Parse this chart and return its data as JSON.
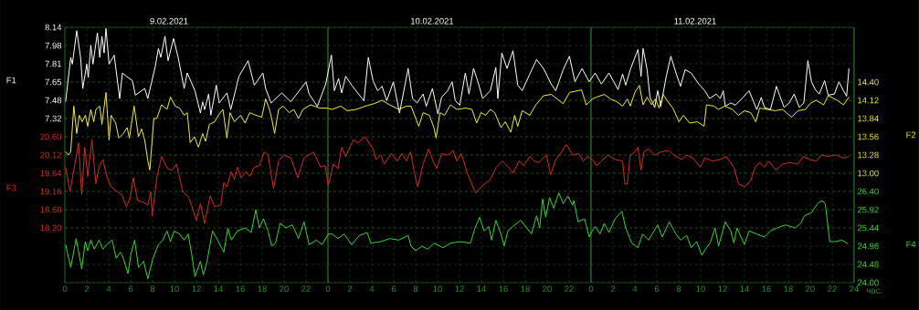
{
  "chart_data": [
    {
      "type": "line",
      "xlabel": "час.",
      "ylabel": "F1",
      "y2label": "F2",
      "y3label": "F3",
      "xlim": [
        "2021-02-09T00:00",
        "2021-02-12T00:00"
      ],
      "xticks": [
        {
          "value": "2021-02-09T00:00",
          "label": "0"
        },
        {
          "value": "2021-02-09T02:00",
          "label": "2"
        },
        {
          "value": "2021-02-09T04:00",
          "label": "4"
        },
        {
          "value": "2021-02-09T06:00",
          "label": "6"
        },
        {
          "value": "2021-02-09T08:00",
          "label": "8"
        },
        {
          "value": "2021-02-09T10:00",
          "label": "10"
        },
        {
          "value": "2021-02-09T12:00",
          "label": "12"
        },
        {
          "value": "2021-02-09T14:00",
          "label": "14"
        },
        {
          "value": "2021-02-09T16:00",
          "label": "16"
        },
        {
          "value": "2021-02-09T18:00",
          "label": "18"
        },
        {
          "value": "2021-02-09T20:00",
          "label": "20"
        },
        {
          "value": "2021-02-09T22:00",
          "label": "22"
        },
        {
          "value": "2021-02-10T00:00",
          "label": "0"
        },
        {
          "value": "2021-02-10T02:00",
          "label": "2"
        },
        {
          "value": "2021-02-10T04:00",
          "label": "4"
        },
        {
          "value": "2021-02-10T06:00",
          "label": "6"
        },
        {
          "value": "2021-02-10T08:00",
          "label": "8"
        },
        {
          "value": "2021-02-10T10:00",
          "label": "10"
        },
        {
          "value": "2021-02-10T12:00",
          "label": "12"
        },
        {
          "value": "2021-02-10T14:00",
          "label": "14"
        },
        {
          "value": "2021-02-10T16:00",
          "label": "16"
        },
        {
          "value": "2021-02-10T18:00",
          "label": "18"
        },
        {
          "value": "2021-02-10T20:00",
          "label": "20"
        },
        {
          "value": "2021-02-10T22:00",
          "label": "22"
        },
        {
          "value": "2021-02-11T00:00",
          "label": "0"
        },
        {
          "value": "2021-02-11T02:00",
          "label": "2"
        },
        {
          "value": "2021-02-11T04:00",
          "label": "4"
        },
        {
          "value": "2021-02-11T06:00",
          "label": "6"
        },
        {
          "value": "2021-02-11T08:00",
          "label": "8"
        },
        {
          "value": "2021-02-11T10:00",
          "label": "10"
        },
        {
          "value": "2021-02-11T12:00",
          "label": "12"
        },
        {
          "value": "2021-02-11T14:00",
          "label": "14"
        },
        {
          "value": "2021-02-11T16:00",
          "label": "16"
        },
        {
          "value": "2021-02-11T18:00",
          "label": "18"
        },
        {
          "value": "2021-02-11T20:00",
          "label": "20"
        },
        {
          "value": "2021-02-11T22:00",
          "label": "22"
        },
        {
          "value": "2021-02-12T00:00",
          "label": "24"
        }
      ],
      "x2lim": [
        "2021-02-09T00:00",
        "2021-02-12T00:00"
      ],
      "x2ticks": [
        {
          "value": "2021-02-09T09:30",
          "label": "9.02.2021"
        },
        {
          "value": "2021-02-10T09:30",
          "label": "10.02.2021"
        },
        {
          "value": "2021-02-11T09:30",
          "label": "11.02.2021"
        }
      ],
      "ylim": [
        5.844,
        8.14
      ],
      "yticks": [
        {
          "value": 8.14,
          "label": "8.14"
        },
        {
          "value": 7.976,
          "label": "7.98"
        },
        {
          "value": 7.812,
          "label": "7.81"
        },
        {
          "value": 7.648,
          "label": "7.65"
        },
        {
          "value": 7.484,
          "label": "7.48"
        },
        {
          "value": 7.32,
          "label": "7.32"
        }
      ],
      "y2lim": [
        11.32,
        15.24
      ],
      "y2ticks": [
        {
          "value": 14.4,
          "label": "14.40"
        },
        {
          "value": 14.12,
          "label": "14.12"
        },
        {
          "value": 13.84,
          "label": "13.84"
        },
        {
          "value": 13.56,
          "label": "13.56"
        },
        {
          "value": 13.28,
          "label": "13.28"
        },
        {
          "value": 13.0,
          "label": "13.00"
        }
      ],
      "y3lim": [
        16.76,
        23.48
      ],
      "y3ticks": [
        {
          "value": 20.6,
          "label": "20.60"
        },
        {
          "value": 20.12,
          "label": "20.12"
        },
        {
          "value": 19.64,
          "label": "19.64"
        },
        {
          "value": 19.16,
          "label": "19.16"
        },
        {
          "value": 18.68,
          "label": "18.68"
        },
        {
          "value": 18.2,
          "label": "18.20"
        }
      ],
      "grid": true,
      "series": [
        {
          "axis": "y2",
          "color": "#f0f020",
          "x": [
            "2021-02-09T00:04",
            "2021-02-09T00:20",
            "2021-02-09T00:32",
            "2021-02-09T00:49",
            "2021-02-09T01:05",
            "2021-02-09T01:19",
            "2021-02-09T01:35",
            "2021-02-09T01:52",
            "2021-02-09T02:05",
            "2021-02-09T02:22",
            "2021-02-09T02:38",
            "2021-02-09T02:50",
            "2021-02-09T03:11",
            "2021-02-09T03:23",
            "2021-02-09T03:45",
            "2021-02-09T04:02",
            "2021-02-09T04:13",
            "2021-02-09T04:38",
            "2021-02-09T04:55",
            "2021-02-09T05:20",
            "2021-02-09T05:41",
            "2021-02-09T05:53",
            "2021-02-09T06:19",
            "2021-02-09T06:43",
            "2021-02-09T07:00",
            "2021-02-09T07:17",
            "2021-02-09T07:34",
            "2021-02-09T07:45",
            "2021-02-09T08:07",
            "2021-02-09T08:23",
            "2021-02-09T08:49",
            "2021-02-09T09:19",
            "2021-02-09T09:38",
            "2021-02-09T10:04",
            "2021-02-09T10:28",
            "2021-02-09T10:53",
            "2021-02-09T11:10",
            "2021-02-09T11:26",
            "2021-02-09T11:49",
            "2021-02-09T12:11",
            "2021-02-09T12:34",
            "2021-02-09T12:50",
            "2021-02-09T13:11",
            "2021-02-09T13:40",
            "2021-02-09T14:05",
            "2021-02-09T14:25",
            "2021-02-09T14:47",
            "2021-02-09T15:04",
            "2021-02-09T15:28",
            "2021-02-09T16:02",
            "2021-02-09T16:26",
            "2021-02-09T16:52",
            "2021-02-09T17:25",
            "2021-02-09T17:58",
            "2021-02-09T18:19",
            "2021-02-09T18:40",
            "2021-02-09T18:52",
            "2021-02-09T19:08",
            "2021-02-09T19:30",
            "2021-02-09T19:55",
            "2021-02-09T20:28",
            "2021-02-09T20:53",
            "2021-02-09T21:19",
            "2021-02-09T21:43",
            "2021-02-09T22:25",
            "2021-02-09T23:15",
            "2021-02-09T23:56",
            "2021-02-10T00:22",
            "2021-02-10T01:11",
            "2021-02-10T01:45",
            "2021-02-10T02:35",
            "2021-02-10T03:25",
            "2021-02-10T04:15",
            "2021-02-10T04:56",
            "2021-02-10T05:38",
            "2021-02-10T06:28",
            "2021-02-10T07:10",
            "2021-02-10T07:35",
            "2021-02-10T08:17",
            "2021-02-10T08:41",
            "2021-02-10T09:15",
            "2021-02-10T09:40",
            "2021-02-10T09:52",
            "2021-02-10T10:13",
            "2021-02-10T10:38",
            "2021-02-10T11:11",
            "2021-02-10T11:45",
            "2021-02-10T12:35",
            "2021-02-10T13:08",
            "2021-02-10T13:34",
            "2021-02-10T13:58",
            "2021-02-10T14:23",
            "2021-02-10T14:49",
            "2021-02-10T15:13",
            "2021-02-10T15:47",
            "2021-02-10T16:11",
            "2021-02-10T16:41",
            "2021-02-10T17:02",
            "2021-02-10T17:19",
            "2021-02-10T17:43",
            "2021-02-10T18:25",
            "2021-02-10T18:58",
            "2021-02-10T19:40",
            "2021-02-10T20:22",
            "2021-02-10T21:28",
            "2021-02-10T22:02",
            "2021-02-10T22:35",
            "2021-02-10T23:08",
            "2021-02-10T23:34",
            "2021-02-11T00:07",
            "2021-02-11T00:32",
            "2021-02-11T01:13",
            "2021-02-11T01:47",
            "2021-02-11T02:20",
            "2021-02-11T02:53",
            "2021-02-11T03:19",
            "2021-02-11T03:35",
            "2021-02-11T04:00",
            "2021-02-11T04:25",
            "2021-02-11T04:45",
            "2021-02-11T05:07",
            "2021-02-11T05:32",
            "2021-02-11T05:52",
            "2021-02-11T06:13",
            "2021-02-11T06:35",
            "2021-02-11T06:55",
            "2021-02-11T07:28",
            "2021-02-11T08:02",
            "2021-02-11T08:26",
            "2021-02-11T09:00",
            "2021-02-11T09:42",
            "2021-02-11T10:19",
            "2021-02-11T10:32",
            "2021-02-11T11:13",
            "2021-02-11T11:38",
            "2021-02-11T12:12",
            "2021-02-11T12:53",
            "2021-02-11T13:27",
            "2021-02-11T14:00",
            "2021-02-11T14:34",
            "2021-02-11T15:02",
            "2021-02-11T15:23",
            "2021-02-11T16:05",
            "2021-02-11T16:47",
            "2021-02-11T17:28",
            "2021-02-11T18:19",
            "2021-02-11T18:52",
            "2021-02-11T19:34",
            "2021-02-11T19:59",
            "2021-02-11T20:32",
            "2021-02-11T21:13",
            "2021-02-11T21:38",
            "2021-02-11T22:28",
            "2021-02-11T23:02",
            "2021-02-11T23:32"
          ],
          "values": [
            13.33,
            13.28,
            13.33,
            14.03,
            13.61,
            13.89,
            13.79,
            13.89,
            13.72,
            13.98,
            13.79,
            13.98,
            14.03,
            13.75,
            14.24,
            13.51,
            13.89,
            13.77,
            13.54,
            13.61,
            13.7,
            13.54,
            14.03,
            13.56,
            13.68,
            13.51,
            13.19,
            13.05,
            13.84,
            13.84,
            14.05,
            13.98,
            14.17,
            14.03,
            14.0,
            13.89,
            13.93,
            13.47,
            13.56,
            13.4,
            13.61,
            13.49,
            13.75,
            13.79,
            13.91,
            13.98,
            13.54,
            13.93,
            13.79,
            13.89,
            13.77,
            13.93,
            13.89,
            13.86,
            14.14,
            13.98,
            13.84,
            13.61,
            13.98,
            14.03,
            13.93,
            13.98,
            13.84,
            13.98,
            14.05,
            14.0,
            14.0,
            13.98,
            14.03,
            13.96,
            13.98,
            14.03,
            14.07,
            14.12,
            14.05,
            13.98,
            14.03,
            14.03,
            13.72,
            13.93,
            13.89,
            13.7,
            13.54,
            13.93,
            13.89,
            14.05,
            13.98,
            14.0,
            13.98,
            13.77,
            13.93,
            13.89,
            13.98,
            13.93,
            13.7,
            13.79,
            13.63,
            13.89,
            13.72,
            13.96,
            13.89,
            14.05,
            14.19,
            14.21,
            14.07,
            14.24,
            14.26,
            14.28,
            14.05,
            14.14,
            14.17,
            14.21,
            14.14,
            14.1,
            14.03,
            14.14,
            14.03,
            14.24,
            14.35,
            14.05,
            14.17,
            14.05,
            14.14,
            14.0,
            14.21,
            14.12,
            14.0,
            13.79,
            13.89,
            13.77,
            13.79,
            13.72,
            14.05,
            14.03,
            13.98,
            14.03,
            13.98,
            13.89,
            13.96,
            13.93,
            13.79,
            14.0,
            13.98,
            13.96,
            13.98,
            13.86,
            13.96,
            13.98,
            14.07,
            14.12,
            14.05,
            14.19,
            14.12,
            14.05,
            14.17
          ]
        },
        {
          "axis": "y3",
          "color": "#d42a1e",
          "x": [
            "2021-02-09T00:04",
            "2021-02-09T00:28",
            "2021-02-09T00:49",
            "2021-02-09T01:15",
            "2021-02-09T01:32",
            "2021-02-09T01:49",
            "2021-02-09T02:05",
            "2021-02-09T02:28",
            "2021-02-09T02:50",
            "2021-02-09T03:07",
            "2021-02-09T03:28",
            "2021-02-09T03:49",
            "2021-02-09T04:13",
            "2021-02-09T04:47",
            "2021-02-09T05:11",
            "2021-02-09T05:37",
            "2021-02-09T05:58",
            "2021-02-09T06:15",
            "2021-02-09T06:38",
            "2021-02-09T07:08",
            "2021-02-09T07:34",
            "2021-02-09T07:50",
            "2021-02-09T07:58",
            "2021-02-09T08:23",
            "2021-02-09T08:49",
            "2021-02-09T09:22",
            "2021-02-09T09:47",
            "2021-02-09T10:11",
            "2021-02-09T10:45",
            "2021-02-09T11:19",
            "2021-02-09T12:00",
            "2021-02-09T12:22",
            "2021-02-09T12:45",
            "2021-02-09T13:15",
            "2021-02-09T13:40",
            "2021-02-09T14:13",
            "2021-02-09T14:30",
            "2021-02-09T14:47",
            "2021-02-09T15:11",
            "2021-02-09T15:28",
            "2021-02-09T15:45",
            "2021-02-09T16:05",
            "2021-02-09T16:32",
            "2021-02-09T16:52",
            "2021-02-09T17:17",
            "2021-02-09T17:45",
            "2021-02-09T18:11",
            "2021-02-09T18:32",
            "2021-02-09T19:02",
            "2021-02-09T19:30",
            "2021-02-09T19:58",
            "2021-02-09T20:37",
            "2021-02-09T21:15",
            "2021-02-09T21:49",
            "2021-02-09T22:41",
            "2021-02-09T23:19",
            "2021-02-09T23:45",
            "2021-02-10T00:02",
            "2021-02-10T00:30",
            "2021-02-10T00:55",
            "2021-02-10T01:15",
            "2021-02-10T01:37",
            "2021-02-10T02:19",
            "2021-02-10T02:43",
            "2021-02-10T03:22",
            "2021-02-10T04:07",
            "2021-02-10T04:23",
            "2021-02-10T04:49",
            "2021-02-10T05:08",
            "2021-02-10T05:47",
            "2021-02-10T06:20",
            "2021-02-10T06:45",
            "2021-02-10T07:10",
            "2021-02-10T07:32",
            "2021-02-10T07:52",
            "2021-02-10T08:11",
            "2021-02-10T08:41",
            "2021-02-10T09:11",
            "2021-02-10T09:35",
            "2021-02-10T09:56",
            "2021-02-10T10:22",
            "2021-02-10T10:55",
            "2021-02-10T11:25",
            "2021-02-10T11:45",
            "2021-02-10T12:10",
            "2021-02-10T12:43",
            "2021-02-10T13:28",
            "2021-02-10T13:58",
            "2021-02-10T14:49",
            "2021-02-10T15:22",
            "2021-02-10T15:55",
            "2021-02-10T16:28",
            "2021-02-10T16:53",
            "2021-02-10T17:26",
            "2021-02-10T17:52",
            "2021-02-10T18:25",
            "2021-02-10T18:50",
            "2021-02-10T19:15",
            "2021-02-10T19:56",
            "2021-02-10T20:19",
            "2021-02-10T20:47",
            "2021-02-10T21:20",
            "2021-02-10T21:45",
            "2021-02-10T22:19",
            "2021-02-10T22:52",
            "2021-02-10T23:17",
            "2021-02-10T23:41",
            "2021-02-11T00:07",
            "2021-02-11T00:32",
            "2021-02-11T00:57",
            "2021-02-11T01:30",
            "2021-02-11T02:12",
            "2021-02-11T02:53",
            "2021-02-11T03:05",
            "2021-02-11T03:19",
            "2021-02-11T03:35",
            "2021-02-11T04:00",
            "2021-02-11T04:17",
            "2021-02-11T04:34",
            "2021-02-11T04:50",
            "2021-02-11T05:15",
            "2021-02-11T05:49",
            "2021-02-11T06:22",
            "2021-02-11T07:04",
            "2021-02-11T07:45",
            "2021-02-11T08:19",
            "2021-02-11T08:44",
            "2021-02-11T09:17",
            "2021-02-11T09:58",
            "2021-02-11T10:23",
            "2021-02-11T11:05",
            "2021-02-11T11:47",
            "2021-02-11T12:20",
            "2021-02-11T13:02",
            "2021-02-11T13:27",
            "2021-02-11T14:00",
            "2021-02-11T14:34",
            "2021-02-11T14:58",
            "2021-02-11T15:23",
            "2021-02-11T15:49",
            "2021-02-11T16:13",
            "2021-02-11T16:52",
            "2021-02-11T17:28",
            "2021-02-11T18:10",
            "2021-02-11T18:52",
            "2021-02-11T19:22",
            "2021-02-11T19:59",
            "2021-02-11T20:32",
            "2021-02-11T21:02",
            "2021-02-11T21:38",
            "2021-02-11T22:20",
            "2021-02-11T23:02",
            "2021-02-11T23:32"
          ],
          "values": [
            19.8,
            19.16,
            19.72,
            20.44,
            19.08,
            20.32,
            19.56,
            20.52,
            19.36,
            19.8,
            20.0,
            19.56,
            19.28,
            19.16,
            19.08,
            18.76,
            19.0,
            19.52,
            18.92,
            18.88,
            18.8,
            19.16,
            18.52,
            19.52,
            20.08,
            19.76,
            19.72,
            19.88,
            19.16,
            19.0,
            18.4,
            18.84,
            18.32,
            19.04,
            18.76,
            18.8,
            19.4,
            19.28,
            19.68,
            19.48,
            19.8,
            19.52,
            19.68,
            19.56,
            19.8,
            19.84,
            20.2,
            20.12,
            19.24,
            19.96,
            20.12,
            20.04,
            19.52,
            20.04,
            20.2,
            19.8,
            19.84,
            19.32,
            19.88,
            19.76,
            20.32,
            20.08,
            20.52,
            20.44,
            20.6,
            20.28,
            20.0,
            20.12,
            19.88,
            20.16,
            19.96,
            20.16,
            19.96,
            20.2,
            19.68,
            19.28,
            19.88,
            20.28,
            19.96,
            19.76,
            20.16,
            20.12,
            20.24,
            19.96,
            20.16,
            19.64,
            19.12,
            19.28,
            19.48,
            19.8,
            19.96,
            19.8,
            19.64,
            19.96,
            19.84,
            20.08,
            19.96,
            19.92,
            20.12,
            19.6,
            20.0,
            20.2,
            20.4,
            20.12,
            20.16,
            19.96,
            20.08,
            20.0,
            19.84,
            19.96,
            20.12,
            20.0,
            19.96,
            19.36,
            19.36,
            20.12,
            20.2,
            20.32,
            19.72,
            20.2,
            20.28,
            20.12,
            20.2,
            20.24,
            20.08,
            20.0,
            20.12,
            20.04,
            19.8,
            20.04,
            19.96,
            20.0,
            20.08,
            19.8,
            19.36,
            19.28,
            19.44,
            19.8,
            19.92,
            19.8,
            19.96,
            19.72,
            19.88,
            19.92,
            19.88,
            20.08,
            20.0,
            19.96,
            20.12,
            20.08,
            20.12,
            20.04,
            20.08
          ]
        },
        {
          "color": "#ffffff",
          "x": [
            "2021-02-09T00:04",
            "2021-02-09T00:32",
            "2021-02-09T00:41",
            "2021-02-09T01:05",
            "2021-02-09T01:26",
            "2021-02-09T01:38",
            "2021-02-09T02:00",
            "2021-02-09T02:08",
            "2021-02-09T02:22",
            "2021-02-09T02:34",
            "2021-02-09T02:58",
            "2021-02-09T03:11",
            "2021-02-09T03:23",
            "2021-02-09T03:35",
            "2021-02-09T03:45",
            "2021-02-09T04:02",
            "2021-02-09T04:30",
            "2021-02-09T05:00",
            "2021-02-09T05:15",
            "2021-02-09T05:37",
            "2021-02-09T06:10",
            "2021-02-09T06:26",
            "2021-02-09T07:17",
            "2021-02-09T07:34",
            "2021-02-09T08:15",
            "2021-02-09T08:32",
            "2021-02-09T08:45",
            "2021-02-09T09:08",
            "2021-02-09T09:25",
            "2021-02-09T09:55",
            "2021-02-09T10:20",
            "2021-02-09T10:53",
            "2021-02-09T11:10",
            "2021-02-09T11:52",
            "2021-02-09T12:22",
            "2021-02-09T12:34",
            "2021-02-09T12:45",
            "2021-02-09T13:07",
            "2021-02-09T13:19",
            "2021-02-09T13:49",
            "2021-02-09T14:05",
            "2021-02-09T14:47",
            "2021-02-09T15:08",
            "2021-02-09T15:53",
            "2021-02-09T16:43",
            "2021-02-09T17:17",
            "2021-02-09T18:04",
            "2021-02-09T18:19",
            "2021-02-09T18:49",
            "2021-02-09T19:47",
            "2021-02-09T20:37",
            "2021-02-09T22:00",
            "2021-02-09T22:17",
            "2021-02-09T23:02",
            "2021-02-09T23:48",
            "2021-02-10T00:19",
            "2021-02-10T00:35",
            "2021-02-10T00:58",
            "2021-02-10T01:15",
            "2021-02-10T01:37",
            "2021-02-10T02:10",
            "2021-02-10T02:43",
            "2021-02-10T03:17",
            "2021-02-10T03:41",
            "2021-02-10T04:07",
            "2021-02-10T04:32",
            "2021-02-10T04:56",
            "2021-02-10T05:22",
            "2021-02-10T05:58",
            "2021-02-10T06:32",
            "2021-02-10T07:19",
            "2021-02-10T07:43",
            "2021-02-10T08:08",
            "2021-02-10T08:41",
            "2021-02-10T08:58",
            "2021-02-10T09:32",
            "2021-02-10T10:02",
            "2021-02-10T10:22",
            "2021-02-10T10:55",
            "2021-02-10T11:20",
            "2021-02-10T11:37",
            "2021-02-10T12:02",
            "2021-02-10T12:32",
            "2021-02-10T12:52",
            "2021-02-10T13:17",
            "2021-02-10T13:41",
            "2021-02-10T14:07",
            "2021-02-10T14:49",
            "2021-02-10T15:19",
            "2021-02-10T15:30",
            "2021-02-10T15:52",
            "2021-02-10T16:20",
            "2021-02-10T16:53",
            "2021-02-10T17:19",
            "2021-02-10T17:43",
            "2021-02-10T18:25",
            "2021-02-10T19:02",
            "2021-02-10T19:40",
            "2021-02-10T20:22",
            "2021-02-10T20:47",
            "2021-02-10T21:28",
            "2021-02-10T22:02",
            "2021-02-10T22:32",
            "2021-02-10T23:11",
            "2021-02-10T23:50",
            "2021-02-11T00:23",
            "2021-02-11T00:57",
            "2021-02-11T01:38",
            "2021-02-11T02:28",
            "2021-02-11T02:53",
            "2021-02-11T03:10",
            "2021-02-11T03:35",
            "2021-02-11T04:17",
            "2021-02-11T04:34",
            "2021-02-11T04:45",
            "2021-02-11T05:07",
            "2021-02-11T05:23",
            "2021-02-11T05:49",
            "2021-02-11T06:05",
            "2021-02-11T06:22",
            "2021-02-11T06:52",
            "2021-02-11T07:17",
            "2021-02-11T07:45",
            "2021-02-11T08:10",
            "2021-02-11T08:35",
            "2021-02-11T09:08",
            "2021-02-11T09:50",
            "2021-02-11T10:23",
            "2021-02-11T10:49",
            "2021-02-11T11:25",
            "2021-02-11T11:47",
            "2021-02-11T12:04",
            "2021-02-11T12:15",
            "2021-02-11T12:45",
            "2021-02-11T13:10",
            "2021-02-11T13:52",
            "2021-02-11T14:25",
            "2021-02-11T14:50",
            "2021-02-11T15:07",
            "2021-02-11T15:32",
            "2021-02-11T15:49",
            "2021-02-11T16:22",
            "2021-02-11T16:55",
            "2021-02-11T17:12",
            "2021-02-11T17:37",
            "2021-02-11T18:05",
            "2021-02-11T18:32",
            "2021-02-11T19:00",
            "2021-02-11T19:25",
            "2021-02-11T19:47",
            "2021-02-11T20:07",
            "2021-02-11T20:28",
            "2021-02-11T20:49",
            "2021-02-11T21:19",
            "2021-02-11T21:38",
            "2021-02-11T22:12",
            "2021-02-11T22:37",
            "2021-02-11T23:02",
            "2021-02-11T23:19",
            "2021-02-11T23:32"
          ],
          "values": [
            7.47,
            7.87,
            7.81,
            8.11,
            7.87,
            7.59,
            7.81,
            7.69,
            7.98,
            7.81,
            8.09,
            7.87,
            8.06,
            7.91,
            8.13,
            7.81,
            7.89,
            7.5,
            7.73,
            7.7,
            7.66,
            7.53,
            7.59,
            7.5,
            7.79,
            7.95,
            7.87,
            8.06,
            7.84,
            8.04,
            7.87,
            7.59,
            7.73,
            7.57,
            7.37,
            7.47,
            7.4,
            7.54,
            7.35,
            7.62,
            7.46,
            7.55,
            7.4,
            7.7,
            7.84,
            7.62,
            7.73,
            7.59,
            7.46,
            7.55,
            7.47,
            7.65,
            7.54,
            7.43,
            7.63,
            7.89,
            7.57,
            7.68,
            7.55,
            7.7,
            7.62,
            7.55,
            7.48,
            7.87,
            7.66,
            7.57,
            7.61,
            7.48,
            7.65,
            7.37,
            7.77,
            7.5,
            7.46,
            7.54,
            7.43,
            7.59,
            7.36,
            7.51,
            7.57,
            7.65,
            7.48,
            7.44,
            7.73,
            7.54,
            7.77,
            7.65,
            7.5,
            7.57,
            7.78,
            7.5,
            7.91,
            7.77,
            7.93,
            7.62,
            7.57,
            7.72,
            7.85,
            7.77,
            7.63,
            7.57,
            7.76,
            7.88,
            7.65,
            7.77,
            7.65,
            7.73,
            7.63,
            7.73,
            7.58,
            7.72,
            7.62,
            7.76,
            7.94,
            7.7,
            7.95,
            7.76,
            7.51,
            7.42,
            7.57,
            7.43,
            7.7,
            7.88,
            7.73,
            7.61,
            7.76,
            7.73,
            7.63,
            7.57,
            7.5,
            7.54,
            7.5,
            7.57,
            7.43,
            7.46,
            7.44,
            7.51,
            7.57,
            7.47,
            7.4,
            7.51,
            7.42,
            7.4,
            7.61,
            7.53,
            7.42,
            7.46,
            7.54,
            7.42,
            7.46,
            7.84,
            7.65,
            7.58,
            7.54,
            7.66,
            7.53,
            7.54,
            7.65,
            7.57,
            7.52,
            7.77
          ]
        }
      ]
    },
    {
      "type": "line",
      "ylabel": "F4",
      "tick_labels": "y",
      "grid": "y",
      "xlim": [
        "2021-02-09T00:00",
        "2021-02-12T00:00"
      ],
      "ylim": [
        24.0,
        30.72
      ],
      "yticks": [
        {
          "value": 26.4,
          "label": "26.40"
        },
        {
          "value": 25.92,
          "label": "25.92"
        },
        {
          "value": 25.44,
          "label": "25.44"
        },
        {
          "value": 24.96,
          "label": "24.96"
        },
        {
          "value": 24.48,
          "label": "24.48"
        },
        {
          "value": 24.0,
          "label": "24.00"
        }
      ],
      "series": [
        {
          "color": "#33d633",
          "x": [
            "2021-02-09T00:04",
            "2021-02-09T00:32",
            "2021-02-09T01:02",
            "2021-02-09T01:32",
            "2021-02-09T01:52",
            "2021-02-09T02:05",
            "2021-02-09T02:22",
            "2021-02-09T02:41",
            "2021-02-09T03:07",
            "2021-02-09T03:28",
            "2021-02-09T03:49",
            "2021-02-09T04:19",
            "2021-02-09T04:41",
            "2021-02-09T05:04",
            "2021-02-09T05:20",
            "2021-02-09T05:45",
            "2021-02-09T06:02",
            "2021-02-09T06:22",
            "2021-02-09T06:43",
            "2021-02-09T07:11",
            "2021-02-09T07:34",
            "2021-02-09T08:02",
            "2021-02-09T08:32",
            "2021-02-09T08:56",
            "2021-02-09T09:19",
            "2021-02-09T09:38",
            "2021-02-09T09:58",
            "2021-02-09T10:28",
            "2021-02-09T10:53",
            "2021-02-09T11:15",
            "2021-02-09T11:35",
            "2021-02-09T11:52",
            "2021-02-09T12:22",
            "2021-02-09T12:38",
            "2021-02-09T12:58",
            "2021-02-09T13:28",
            "2021-02-09T13:56",
            "2021-02-09T14:30",
            "2021-02-09T14:52",
            "2021-02-09T15:11",
            "2021-02-09T15:45",
            "2021-02-09T16:26",
            "2021-02-09T17:00",
            "2021-02-09T17:25",
            "2021-02-09T17:45",
            "2021-02-09T18:07",
            "2021-02-09T18:32",
            "2021-02-09T18:52",
            "2021-02-09T19:13",
            "2021-02-09T19:38",
            "2021-02-09T20:11",
            "2021-02-09T20:45",
            "2021-02-09T21:19",
            "2021-02-09T21:49",
            "2021-02-09T22:17",
            "2021-02-09T22:58",
            "2021-02-09T23:28",
            "2021-02-10T00:02",
            "2021-02-10T00:22",
            "2021-02-10T00:55",
            "2021-02-10T01:28",
            "2021-02-10T02:10",
            "2021-02-10T02:52",
            "2021-02-10T03:34",
            "2021-02-10T03:55",
            "2021-02-10T04:49",
            "2021-02-10T05:38",
            "2021-02-10T06:28",
            "2021-02-10T07:19",
            "2021-02-10T07:35",
            "2021-02-10T08:00",
            "2021-02-10T08:34",
            "2021-02-10T09:07",
            "2021-02-10T09:40",
            "2021-02-10T10:30",
            "2021-02-10T11:11",
            "2021-02-10T12:02",
            "2021-02-10T13:00",
            "2021-02-10T13:25",
            "2021-02-10T13:50",
            "2021-02-10T14:15",
            "2021-02-10T14:40",
            "2021-02-10T14:56",
            "2021-02-10T15:19",
            "2021-02-10T15:47",
            "2021-02-10T16:04",
            "2021-02-10T16:25",
            "2021-02-10T16:53",
            "2021-02-10T17:35",
            "2021-02-10T18:08",
            "2021-02-10T18:34",
            "2021-02-10T19:02",
            "2021-02-10T19:19",
            "2021-02-10T19:35",
            "2021-02-10T19:52",
            "2021-02-10T20:13",
            "2021-02-10T20:35",
            "2021-02-10T21:04",
            "2021-02-10T21:28",
            "2021-02-10T21:53",
            "2021-02-10T22:19",
            "2021-02-10T22:26",
            "2021-02-10T22:49",
            "2021-02-10T23:25",
            "2021-02-10T23:50",
            "2021-02-11T00:11",
            "2021-02-11T00:23",
            "2021-02-11T00:49",
            "2021-02-11T01:13",
            "2021-02-11T01:38",
            "2021-02-11T02:12",
            "2021-02-11T02:49",
            "2021-02-11T03:10",
            "2021-02-11T03:43",
            "2021-02-11T04:17",
            "2021-02-11T04:42",
            "2021-02-11T05:15",
            "2021-02-11T06:05",
            "2021-02-11T06:30",
            "2021-02-11T07:08",
            "2021-02-11T07:45",
            "2021-02-11T08:10",
            "2021-02-11T08:44",
            "2021-02-11T09:08",
            "2021-02-11T09:38",
            "2021-02-11T10:07",
            "2021-02-11T10:32",
            "2021-02-11T10:52",
            "2021-02-11T11:19",
            "2021-02-11T11:38",
            "2021-02-11T12:15",
            "2021-02-11T12:45",
            "2021-02-11T13:02",
            "2021-02-11T13:19",
            "2021-02-11T14:00",
            "2021-02-11T14:25",
            "2021-02-11T15:07",
            "2021-02-11T15:49",
            "2021-02-11T16:22",
            "2021-02-11T16:58",
            "2021-02-11T17:45",
            "2021-02-11T18:37",
            "2021-02-11T19:08",
            "2021-02-11T19:28",
            "2021-02-11T20:07",
            "2021-02-11T20:40",
            "2021-02-11T21:05",
            "2021-02-11T21:22",
            "2021-02-11T21:47",
            "2021-02-11T22:20",
            "2021-02-11T22:53",
            "2021-02-11T23:27"
          ],
          "values": [
            25.0,
            24.4,
            25.16,
            24.36,
            25.08,
            24.84,
            25.12,
            24.88,
            25.12,
            24.88,
            25.0,
            25.12,
            24.64,
            24.8,
            24.64,
            24.24,
            24.76,
            25.12,
            24.4,
            24.56,
            24.1,
            24.64,
            25.0,
            25.12,
            25.36,
            25.08,
            25.36,
            25.28,
            25.12,
            25.28,
            24.72,
            24.16,
            24.56,
            24.2,
            24.56,
            25.36,
            25.12,
            24.8,
            25.44,
            25.12,
            25.36,
            25.44,
            25.32,
            25.92,
            25.44,
            25.68,
            25.36,
            24.96,
            25.04,
            25.56,
            25.44,
            25.52,
            25.16,
            25.6,
            25.0,
            25.12,
            25.0,
            25.28,
            25.28,
            25.16,
            25.28,
            25.0,
            25.24,
            25.32,
            25.04,
            25.08,
            25.16,
            25.12,
            25.24,
            24.96,
            24.84,
            24.96,
            24.88,
            25.04,
            24.92,
            25.04,
            25.08,
            25.04,
            25.44,
            25.72,
            25.36,
            25.48,
            25.12,
            25.64,
            25.28,
            24.96,
            25.36,
            25.48,
            25.64,
            25.44,
            25.28,
            25.76,
            25.44,
            26.2,
            25.72,
            26.24,
            25.96,
            26.36,
            26.08,
            26.28,
            26.04,
            26.16,
            25.6,
            25.68,
            25.2,
            25.4,
            25.48,
            25.28,
            25.56,
            25.32,
            25.68,
            25.88,
            25.44,
            25.04,
            24.92,
            25.28,
            25.12,
            25.52,
            25.2,
            25.6,
            25.28,
            25.12,
            25.24,
            24.92,
            25.08,
            24.72,
            24.92,
            25.04,
            25.44,
            24.96,
            25.6,
            25.36,
            25.04,
            25.44,
            25.0,
            25.36,
            25.28,
            25.2,
            25.36,
            25.44,
            25.52,
            25.44,
            25.56,
            25.76,
            25.84,
            26.08,
            26.16,
            26.08,
            25.08,
            25.08,
            25.12,
            25.02
          ]
        }
      ]
    }
  ]
}
